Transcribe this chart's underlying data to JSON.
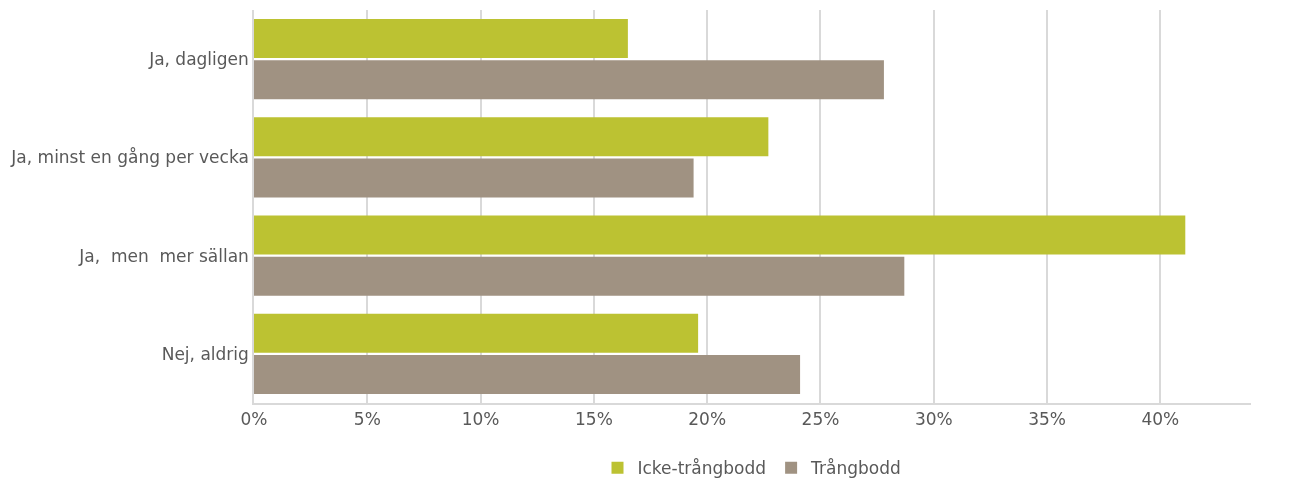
{
  "chart_data": {
    "type": "bar",
    "orientation": "horizontal",
    "categories": [
      "Ja, dagligen",
      "Ja, minst en gång per vecka",
      "Ja,  men  mer sällan",
      "Nej, aldrig"
    ],
    "series": [
      {
        "name": "Icke-trångbodd",
        "color": "#bcc232",
        "values": [
          16.5,
          22.7,
          41.1,
          19.6
        ]
      },
      {
        "name": "Trångbodd",
        "color": "#a09282",
        "values": [
          27.8,
          19.4,
          28.7,
          24.1
        ]
      }
    ],
    "xlim": [
      0,
      44
    ],
    "xticks": [
      {
        "value": 0,
        "label": "0%"
      },
      {
        "value": 5,
        "label": "5%"
      },
      {
        "value": 10,
        "label": "10%"
      },
      {
        "value": 15,
        "label": "15%"
      },
      {
        "value": 20,
        "label": "20%"
      },
      {
        "value": 25,
        "label": "25%"
      },
      {
        "value": 30,
        "label": "30%"
      },
      {
        "value": 35,
        "label": "35%"
      },
      {
        "value": 40,
        "label": "40%"
      }
    ],
    "grid": "x",
    "legend": "bottom"
  }
}
